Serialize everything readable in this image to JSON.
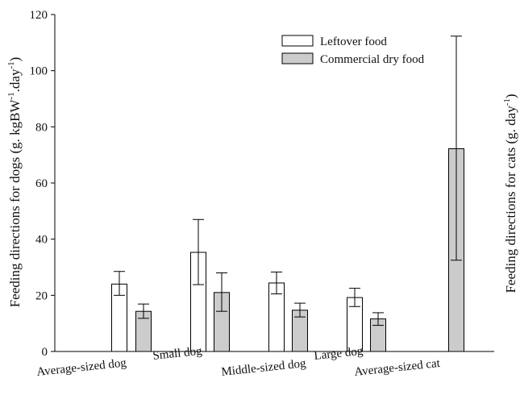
{
  "chart_data": {
    "type": "bar",
    "categories": [
      "Average-sized dog",
      "Small dog",
      "Middle-sized dog",
      "Large dog",
      "Average-sized cat"
    ],
    "series": [
      {
        "name": "Leftover food",
        "fill": "#ffffff",
        "values": [
          24,
          35.3,
          24.4,
          19.2,
          null
        ],
        "err_low": [
          20,
          23.8,
          20.5,
          16,
          null
        ],
        "err_high": [
          28.5,
          47,
          28.3,
          22.5,
          null
        ]
      },
      {
        "name": "Commercial dry food",
        "fill": "#cccccc",
        "values": [
          14.3,
          21,
          14.7,
          11.6,
          72.2
        ],
        "err_low": [
          11.8,
          14.3,
          12.3,
          9.3,
          32.5
        ],
        "err_high": [
          16.9,
          28,
          17.2,
          13.8,
          112.3
        ]
      }
    ],
    "ylim": [
      0,
      120
    ],
    "yticks": [
      0,
      20,
      40,
      60,
      80,
      100,
      120
    ],
    "ylabel_left": {
      "main": "Feeding directions for dogs (g. kgBW",
      "sup1": "-1",
      "mid": ".day",
      "sup2": "-1",
      "end": ")"
    },
    "ylabel_right": {
      "main": "Feeding directions for cats (g. day",
      "sup": "-1",
      "end": ")"
    },
    "legend_position": "top-right",
    "grid": false
  }
}
